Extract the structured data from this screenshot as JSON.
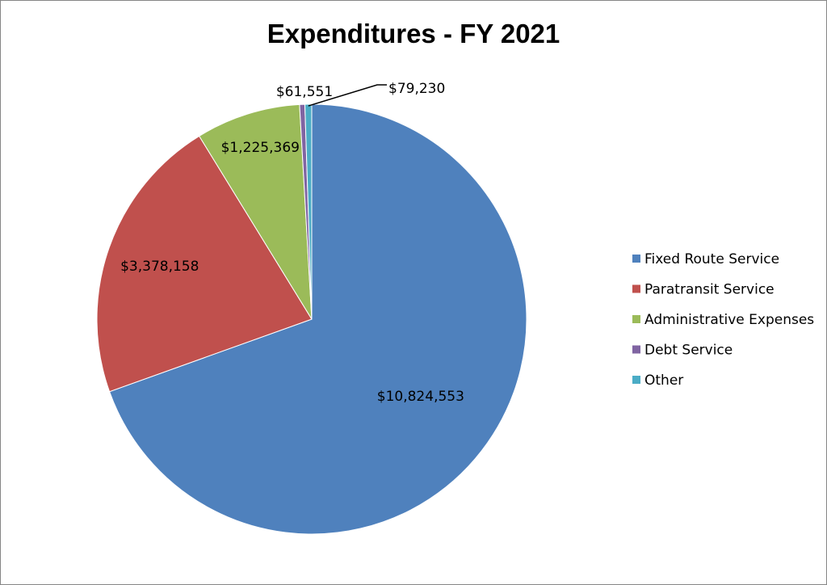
{
  "chart_data": {
    "type": "pie",
    "title": "Expenditures - FY 2021",
    "categories": [
      "Fixed Route Service",
      "Paratransit Service",
      "Administrative Expenses",
      "Debt Service",
      "Other"
    ],
    "values": [
      10824553,
      3378158,
      1225369,
      61551,
      79230
    ],
    "data_labels": [
      "$10,824,553",
      "$3,378,158",
      "$1,225,369",
      "$61,551",
      "$79,230"
    ],
    "colors": [
      "#4F81BD",
      "#C0504D",
      "#9BBB59",
      "#8064A2",
      "#4BACC6"
    ],
    "start_angle_deg": 0,
    "direction": "clockwise",
    "legend_position": "right"
  }
}
